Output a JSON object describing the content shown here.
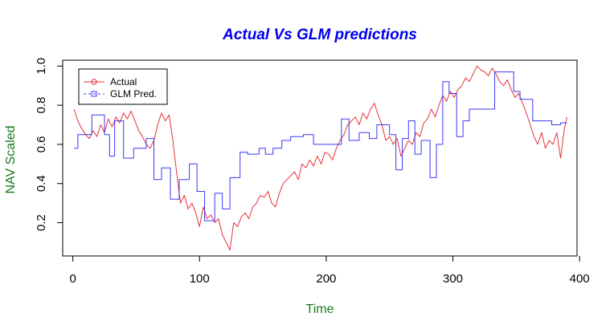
{
  "chart_data": {
    "type": "line",
    "title": "Actual Vs GLM predictions",
    "xlabel": "Time",
    "ylabel": "NAV Scaled",
    "xlim": [
      -8,
      398
    ],
    "ylim": [
      0.03,
      1.03
    ],
    "xticks": [
      0,
      100,
      200,
      300,
      400
    ],
    "yticks": [
      0.2,
      0.4,
      0.6,
      0.8,
      1.0
    ],
    "xtick_labels": [
      "0",
      "100",
      "200",
      "300",
      "400"
    ],
    "ytick_labels": [
      "0.2",
      "0.4",
      "0.6",
      "0.8",
      "1.0"
    ],
    "grid": false,
    "legend_position": "top-left",
    "colors": {
      "title": "#0000EE",
      "axis_label": "#1C7A1C",
      "actual": "#E8323A",
      "pred": "#3A3AF0"
    },
    "series": [
      {
        "name": "Actual",
        "marker": "circle",
        "linestyle": "solid",
        "x": [
          1,
          4,
          7,
          10,
          13,
          16,
          19,
          22,
          25,
          28,
          31,
          34,
          37,
          40,
          43,
          46,
          49,
          52,
          55,
          58,
          61,
          64,
          67,
          70,
          73,
          76,
          79,
          82,
          85,
          88,
          91,
          94,
          97,
          100,
          103,
          106,
          109,
          112,
          115,
          118,
          121,
          124,
          127,
          130,
          133,
          136,
          139,
          142,
          145,
          148,
          151,
          154,
          157,
          160,
          163,
          166,
          169,
          172,
          175,
          178,
          181,
          184,
          187,
          190,
          193,
          196,
          199,
          202,
          205,
          208,
          211,
          214,
          217,
          220,
          223,
          226,
          229,
          232,
          235,
          238,
          241,
          244,
          247,
          250,
          253,
          256,
          259,
          262,
          265,
          268,
          271,
          274,
          277,
          280,
          283,
          286,
          289,
          292,
          295,
          298,
          301,
          304,
          307,
          310,
          313,
          316,
          319,
          322,
          325,
          328,
          331,
          334,
          337,
          340,
          343,
          346,
          349,
          352,
          355,
          358,
          361,
          364,
          367,
          370,
          373,
          376,
          379,
          382,
          385,
          388,
          390
        ],
        "y": [
          0.78,
          0.72,
          0.68,
          0.65,
          0.63,
          0.67,
          0.64,
          0.7,
          0.66,
          0.73,
          0.69,
          0.74,
          0.71,
          0.76,
          0.73,
          0.77,
          0.72,
          0.67,
          0.64,
          0.6,
          0.58,
          0.62,
          0.7,
          0.76,
          0.72,
          0.75,
          0.62,
          0.45,
          0.3,
          0.34,
          0.27,
          0.3,
          0.25,
          0.18,
          0.28,
          0.22,
          0.24,
          0.2,
          0.22,
          0.14,
          0.1,
          0.06,
          0.2,
          0.18,
          0.23,
          0.25,
          0.22,
          0.28,
          0.3,
          0.34,
          0.33,
          0.36,
          0.3,
          0.28,
          0.35,
          0.4,
          0.42,
          0.44,
          0.46,
          0.42,
          0.5,
          0.48,
          0.52,
          0.49,
          0.54,
          0.5,
          0.56,
          0.55,
          0.52,
          0.58,
          0.62,
          0.65,
          0.7,
          0.72,
          0.74,
          0.7,
          0.76,
          0.73,
          0.78,
          0.81,
          0.75,
          0.7,
          0.62,
          0.64,
          0.6,
          0.63,
          0.54,
          0.58,
          0.62,
          0.6,
          0.66,
          0.64,
          0.71,
          0.73,
          0.78,
          0.74,
          0.8,
          0.85,
          0.82,
          0.87,
          0.84,
          0.88,
          0.9,
          0.94,
          0.92,
          0.96,
          1.0,
          0.98,
          0.97,
          0.95,
          0.99,
          0.96,
          0.92,
          0.9,
          0.93,
          0.88,
          0.84,
          0.86,
          0.81,
          0.76,
          0.7,
          0.64,
          0.6,
          0.66,
          0.58,
          0.62,
          0.6,
          0.66,
          0.53,
          0.68,
          0.74
        ]
      },
      {
        "name": "GLM Pred.",
        "marker": "square",
        "linestyle": "dashed",
        "x": [
          1,
          4,
          4,
          15,
          15,
          25,
          25,
          29,
          29,
          33,
          33,
          40,
          40,
          48,
          48,
          58,
          58,
          64,
          64,
          70,
          70,
          77,
          77,
          84,
          84,
          92,
          92,
          98,
          98,
          104,
          104,
          112,
          112,
          118,
          118,
          124,
          124,
          132,
          132,
          138,
          138,
          147,
          147,
          152,
          152,
          158,
          158,
          165,
          165,
          172,
          172,
          182,
          182,
          190,
          190,
          205,
          205,
          212,
          212,
          218,
          218,
          226,
          226,
          234,
          234,
          240,
          240,
          250,
          250,
          255,
          255,
          260,
          260,
          265,
          265,
          270,
          270,
          275,
          275,
          282,
          282,
          287,
          287,
          292,
          292,
          297,
          297,
          303,
          303,
          308,
          308,
          313,
          313,
          333,
          333,
          348,
          348,
          353,
          353,
          363,
          363,
          372,
          372,
          378,
          378,
          385,
          385,
          390
        ],
        "y": [
          0.58,
          0.58,
          0.65,
          0.65,
          0.75,
          0.75,
          0.65,
          0.65,
          0.54,
          0.54,
          0.72,
          0.72,
          0.53,
          0.53,
          0.58,
          0.58,
          0.63,
          0.63,
          0.42,
          0.42,
          0.48,
          0.48,
          0.32,
          0.32,
          0.42,
          0.42,
          0.5,
          0.5,
          0.36,
          0.36,
          0.21,
          0.21,
          0.35,
          0.35,
          0.27,
          0.27,
          0.43,
          0.43,
          0.56,
          0.56,
          0.55,
          0.55,
          0.58,
          0.58,
          0.55,
          0.55,
          0.58,
          0.58,
          0.62,
          0.62,
          0.64,
          0.64,
          0.65,
          0.65,
          0.6,
          0.6,
          0.6,
          0.6,
          0.73,
          0.73,
          0.62,
          0.62,
          0.66,
          0.66,
          0.63,
          0.63,
          0.7,
          0.7,
          0.65,
          0.65,
          0.47,
          0.47,
          0.63,
          0.63,
          0.72,
          0.72,
          0.55,
          0.55,
          0.62,
          0.62,
          0.43,
          0.43,
          0.6,
          0.6,
          0.92,
          0.92,
          0.86,
          0.86,
          0.64,
          0.64,
          0.72,
          0.72,
          0.78,
          0.78,
          0.97,
          0.97,
          0.87,
          0.87,
          0.83,
          0.83,
          0.72,
          0.72,
          0.72,
          0.72,
          0.7,
          0.7,
          0.71,
          0.71
        ]
      }
    ]
  }
}
